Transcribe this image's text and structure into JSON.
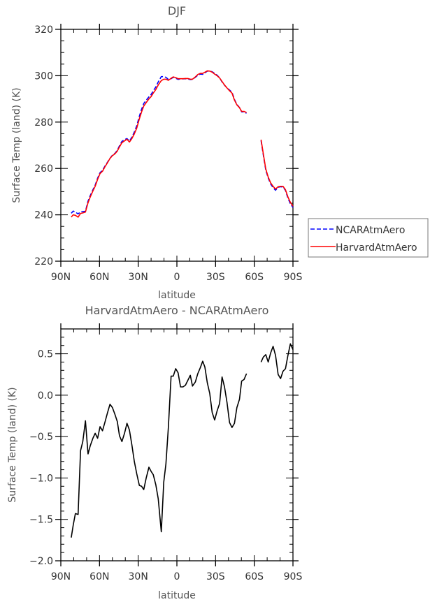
{
  "chart_data": [
    {
      "type": "line",
      "title": "DJF",
      "xlabel": "latitude",
      "ylabel": "Surface Temp (land) (K)",
      "xlim": [
        90,
        -90
      ],
      "ylim": [
        220,
        320
      ],
      "xticks": [
        90,
        60,
        30,
        0,
        -30,
        -60,
        -90
      ],
      "xtick_labels": [
        "90N",
        "60N",
        "30N",
        "0",
        "30S",
        "60S",
        "90S"
      ],
      "yticks": [
        220,
        240,
        260,
        280,
        300,
        320
      ],
      "ytick_labels": [
        "220",
        "240",
        "260",
        "280",
        "300",
        "320"
      ],
      "legend": {
        "placement": "right",
        "entries": [
          "NCARAtmAero",
          "HarvardAtmAero"
        ]
      },
      "x": [
        81.9,
        80.4,
        78.7,
        76.6,
        74.7,
        73.0,
        70.9,
        68.9,
        67.2,
        65.1,
        63.4,
        61.5,
        59.6,
        57.7,
        55.7,
        53.8,
        51.9,
        50.0,
        48.1,
        46.2,
        44.5,
        42.6,
        40.6,
        38.7,
        36.8,
        34.9,
        33.0,
        31.1,
        29.1,
        27.4,
        25.7,
        23.8,
        21.7,
        20.0,
        18.3,
        16.4,
        14.5,
        12.1,
        10.2,
        8.5,
        6.6,
        4.5,
        2.8,
        0.9,
        -0.9,
        -2.8,
        -4.7,
        -6.6,
        -8.5,
        -10.4,
        -12.1,
        -14.3,
        -16.2,
        -18.1,
        -20.0,
        -21.7,
        -23.6,
        -25.5,
        -27.4,
        -29.3,
        -31.2,
        -33.1,
        -35.0,
        -36.9,
        -38.9,
        -40.8,
        -42.7,
        -44.6,
        -46.5,
        -48.5,
        -50.2,
        -52.1,
        -54.0,
        null,
        -65.3,
        -67.0,
        -68.9,
        -70.8,
        -72.7,
        -74.6,
        -76.5,
        -78.5,
        -80.4,
        -82.3,
        -84.2,
        -86.1,
        -88.0,
        -90.0
      ],
      "series": [
        {
          "name": "NCARAtmAero",
          "color": "#0000ff",
          "dash": true,
          "values": [
            240.7,
            241.6,
            241.2,
            240.4,
            241.3,
            241.4,
            241.5,
            245.9,
            248.3,
            250.8,
            252.8,
            255.8,
            258.2,
            259.2,
            261.1,
            262.7,
            264.4,
            265.7,
            266.5,
            267.8,
            269.8,
            271.7,
            272.4,
            272.9,
            271.8,
            273.5,
            275.7,
            278.4,
            282.5,
            285.5,
            288.0,
            289.4,
            290.9,
            291.9,
            293.5,
            295.1,
            297.3,
            299.6,
            299.6,
            299.3,
            298.4,
            298.7,
            299.3,
            298.9,
            298.4,
            298.6,
            298.6,
            298.7,
            298.6,
            298.3,
            298.4,
            299.3,
            300.2,
            300.7,
            300.6,
            301.2,
            302.0,
            302.0,
            301.7,
            301.0,
            300.2,
            299.1,
            297.3,
            295.9,
            294.8,
            293.8,
            292.9,
            289.8,
            287.6,
            286.3,
            284.4,
            284.4,
            283.8,
            null,
            272.0,
            265.8,
            259.3,
            255.9,
            253.3,
            251.7,
            250.6,
            251.9,
            252.1,
            252.0,
            250.5,
            247.2,
            244.8,
            243.2
          ]
        },
        {
          "name": "HarvardAtmAero",
          "color": "#ff0000",
          "dash": false,
          "values": [
            239.0,
            240.0,
            239.8,
            239.0,
            240.6,
            240.8,
            241.2,
            245.2,
            247.7,
            250.3,
            252.3,
            255.3,
            257.8,
            258.8,
            260.8,
            262.5,
            264.3,
            265.5,
            266.3,
            267.5,
            269.3,
            271.1,
            271.9,
            272.6,
            271.4,
            272.9,
            274.9,
            277.4,
            281.4,
            284.4,
            286.9,
            288.4,
            290.0,
            291.0,
            292.5,
            294.0,
            296.0,
            297.9,
            298.5,
            298.5,
            298.0,
            298.9,
            299.5,
            299.2,
            298.7,
            298.7,
            298.7,
            298.8,
            298.8,
            298.5,
            298.5,
            299.5,
            300.5,
            301.0,
            301.0,
            301.5,
            302.1,
            302.0,
            301.5,
            300.7,
            300.0,
            299.0,
            297.5,
            296.0,
            294.7,
            293.5,
            292.5,
            289.5,
            287.4,
            286.2,
            284.6,
            284.6,
            284.1,
            null,
            272.4,
            266.3,
            259.8,
            256.3,
            253.8,
            252.3,
            251.1,
            252.1,
            252.3,
            252.3,
            250.8,
            247.7,
            245.4,
            243.7
          ]
        }
      ]
    },
    {
      "type": "line",
      "title": "HarvardAtmAero - NCARAtmAero",
      "xlabel": "latitude",
      "ylabel": "Surface Temp (land) (K)",
      "xlim": [
        90,
        -90
      ],
      "ylim": [
        -2.0,
        0.8
      ],
      "xticks": [
        90,
        60,
        30,
        0,
        -30,
        -60,
        -90
      ],
      "xtick_labels": [
        "90N",
        "60N",
        "30N",
        "0",
        "30S",
        "60S",
        "90S"
      ],
      "yticks": [
        -2.0,
        -1.5,
        -1.0,
        -0.5,
        0.0,
        0.5
      ],
      "ytick_labels": [
        "−2.0",
        "−1.5",
        "−1.0",
        "−0.5",
        "0.0",
        "0.5"
      ],
      "x": [
        81.9,
        80.4,
        78.7,
        76.6,
        74.7,
        73.0,
        70.9,
        68.9,
        67.2,
        65.1,
        63.4,
        61.5,
        59.6,
        57.7,
        55.7,
        53.8,
        51.9,
        50.0,
        48.1,
        46.2,
        44.5,
        42.6,
        40.6,
        38.7,
        36.8,
        34.9,
        33.0,
        31.1,
        29.1,
        27.4,
        25.7,
        23.8,
        21.7,
        20.0,
        18.3,
        16.4,
        14.5,
        12.1,
        10.2,
        8.5,
        6.6,
        4.5,
        2.8,
        0.9,
        -0.9,
        -2.8,
        -4.7,
        -6.6,
        -8.5,
        -10.4,
        -12.1,
        -14.3,
        -16.2,
        -18.1,
        -20.0,
        -21.7,
        -23.6,
        -25.5,
        -27.4,
        -29.3,
        -31.2,
        -33.1,
        -35.0,
        -36.9,
        -38.9,
        -40.8,
        -42.7,
        -44.6,
        -46.5,
        -48.5,
        -50.2,
        -52.1,
        -54.0,
        null,
        -65.3,
        -67.0,
        -68.9,
        -70.8,
        -72.7,
        -74.6,
        -76.5,
        -78.5,
        -80.4,
        -82.3,
        -84.2,
        -86.1,
        -88.0,
        -90.0
      ],
      "series": [
        {
          "name": "HarvardAtmAero - NCARAtmAero",
          "color": "#000000",
          "dash": false,
          "values": [
            -1.72,
            -1.57,
            -1.43,
            -1.44,
            -0.67,
            -0.56,
            -0.31,
            -0.71,
            -0.61,
            -0.52,
            -0.46,
            -0.52,
            -0.38,
            -0.43,
            -0.32,
            -0.21,
            -0.11,
            -0.15,
            -0.23,
            -0.32,
            -0.49,
            -0.56,
            -0.46,
            -0.34,
            -0.42,
            -0.6,
            -0.8,
            -0.95,
            -1.09,
            -1.1,
            -1.14,
            -1.0,
            -0.87,
            -0.92,
            -0.96,
            -1.08,
            -1.25,
            -1.65,
            -1.05,
            -0.83,
            -0.39,
            0.23,
            0.23,
            0.32,
            0.27,
            0.1,
            0.1,
            0.12,
            0.18,
            0.24,
            0.11,
            0.16,
            0.26,
            0.33,
            0.41,
            0.34,
            0.15,
            0.02,
            -0.21,
            -0.3,
            -0.19,
            -0.1,
            0.22,
            0.1,
            -0.09,
            -0.33,
            -0.39,
            -0.34,
            -0.15,
            -0.05,
            0.17,
            0.19,
            0.26,
            null,
            0.4,
            0.46,
            0.49,
            0.4,
            0.51,
            0.59,
            0.48,
            0.25,
            0.2,
            0.29,
            0.32,
            0.48,
            0.62,
            0.55
          ]
        }
      ]
    }
  ]
}
